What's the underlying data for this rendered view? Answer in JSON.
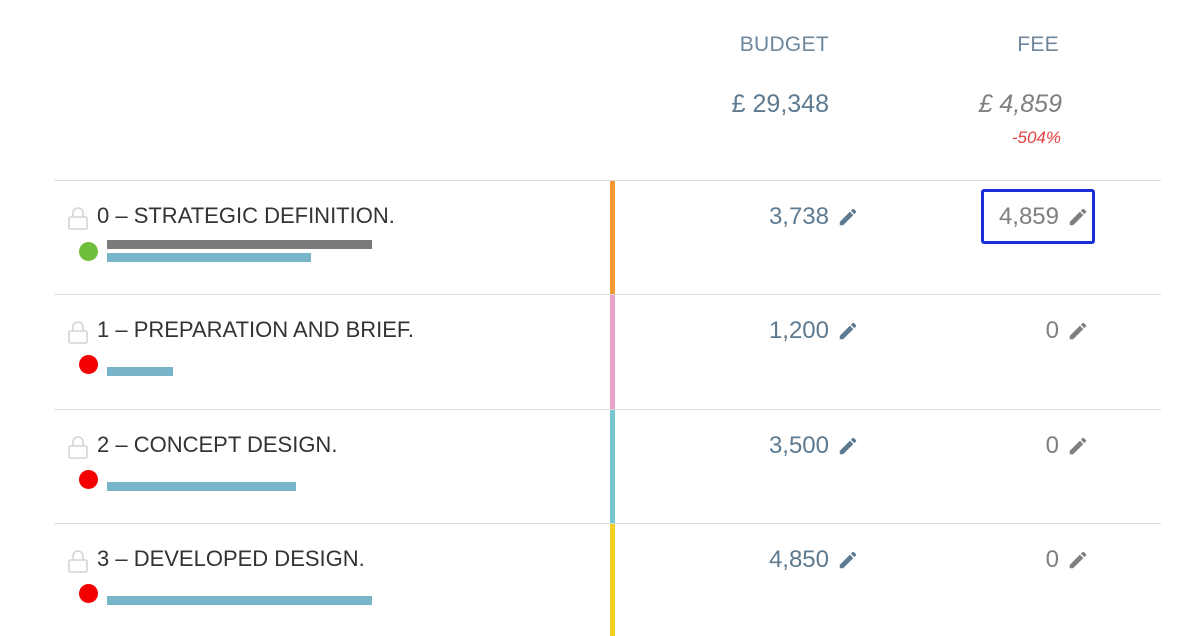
{
  "header": {
    "budget_label": "BUDGET",
    "fee_label": "FEE"
  },
  "totals": {
    "budget": "£ 29,348",
    "fee": "£ 4,859",
    "fee_percent": "-504%"
  },
  "colors": {
    "stage_accents": [
      "#f39a32",
      "#e8a4cb",
      "#76c6cf",
      "#f7cf22"
    ],
    "status_green": "#6fbf3d",
    "status_red": "#f40000",
    "selection_outline": "#1a2fd6"
  },
  "rows": [
    {
      "title": "0 – STRATEGIC DEFINITION.",
      "status": "green",
      "progress": [
        0.52,
        0.4
      ],
      "budget": "3,738",
      "fee": "4,859",
      "selected": true,
      "icon": "lock-icon"
    },
    {
      "title": "1 – PREPARATION AND BRIEF.",
      "status": "red",
      "progress": [
        0.13
      ],
      "budget": "1,200",
      "fee": "0",
      "selected": false,
      "icon": "lock-icon"
    },
    {
      "title": "2 – CONCEPT DESIGN.",
      "status": "red",
      "progress": [
        0.37
      ],
      "budget": "3,500",
      "fee": "0",
      "selected": false,
      "icon": "lock-icon"
    },
    {
      "title": "3 – DEVELOPED DESIGN.",
      "status": "red",
      "progress": [
        0.52
      ],
      "budget": "4,850",
      "fee": "0",
      "selected": false,
      "icon": "lock-icon"
    }
  ]
}
